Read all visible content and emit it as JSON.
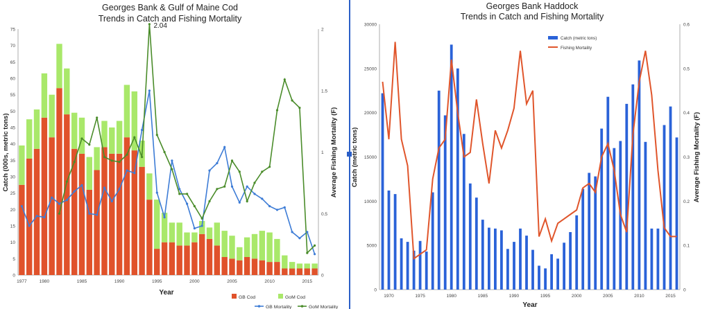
{
  "colors": {
    "gb_cod": "#e0522b",
    "gom_cod": "#a9e86a",
    "gb_mortality": "#3d7cd6",
    "gom_mortality": "#4a8c2a",
    "haddock_catch": "#2a62d8",
    "haddock_mortality": "#e0552b",
    "divider": "#2b5fc7"
  },
  "chart_data": [
    {
      "type": "bar",
      "stacked": true,
      "title": "Georges Bank & Gulf of Maine Cod",
      "subtitle": "Trends in Catch and Fishing Mortality",
      "xlabel": "Year",
      "ylabel": "Catch (000s, metric tons)",
      "y2label": "Average Fishing Mortality (F)",
      "ylim": [
        0,
        75
      ],
      "y2lim": [
        0,
        2
      ],
      "yticks": [
        "0",
        "5",
        "10",
        "15",
        "20",
        "25",
        "30",
        "35",
        "40",
        "45",
        "50",
        "55",
        "60",
        "65",
        "70",
        "75"
      ],
      "y2ticks": [
        "0",
        "0.5",
        "1",
        "1.5",
        "2"
      ],
      "xticks": [
        "1977",
        "1980",
        "1985",
        "1990",
        "1995",
        "2000",
        "2005",
        "2010",
        "2015"
      ],
      "annotation": "2.04",
      "legend": [
        "GB Cod",
        "GoM Cod",
        "GB Mortality",
        "GoM Mortality"
      ],
      "legend_position": "bottom-right",
      "x": [
        1977,
        1978,
        1979,
        1980,
        1981,
        1982,
        1983,
        1984,
        1985,
        1986,
        1987,
        1988,
        1989,
        1990,
        1991,
        1992,
        1993,
        1994,
        1995,
        1996,
        1997,
        1998,
        1999,
        2000,
        2001,
        2002,
        2003,
        2004,
        2005,
        2006,
        2007,
        2008,
        2009,
        2010,
        2011,
        2012,
        2013,
        2014,
        2015,
        2016
      ],
      "series": [
        {
          "name": "GB Cod",
          "kind": "bar",
          "axis": "left",
          "values": [
            27.5,
            35.5,
            38.5,
            48,
            42,
            57,
            49,
            38.5,
            37,
            26,
            32,
            39,
            37,
            37,
            42,
            38,
            33,
            23,
            8,
            10,
            10,
            9,
            9,
            10,
            12.5,
            11,
            9,
            5.5,
            5,
            4.5,
            5.5,
            5,
            4.5,
            4,
            4,
            2,
            2,
            2,
            2,
            2
          ]
        },
        {
          "name": "GoM Cod",
          "kind": "bar",
          "axis": "left",
          "values": [
            12,
            12,
            12,
            13.5,
            13,
            13.5,
            14,
            11,
            11,
            10,
            7,
            8,
            8,
            10,
            16,
            18,
            8,
            8,
            15,
            9,
            6,
            7,
            4,
            3,
            4,
            3.5,
            7,
            8,
            7,
            4,
            6,
            7.5,
            9,
            9,
            7,
            4,
            2,
            1.5,
            1.5,
            1.5
          ]
        },
        {
          "name": "GB Mortality",
          "kind": "line",
          "axis": "right",
          "values": [
            0.56,
            0.4,
            0.48,
            0.47,
            0.63,
            0.58,
            0.61,
            0.68,
            0.73,
            0.5,
            0.49,
            0.71,
            0.6,
            0.7,
            0.85,
            0.83,
            1.18,
            1.5,
            0.67,
            0.47,
            0.93,
            0.7,
            0.58,
            0.38,
            0.4,
            0.85,
            0.91,
            1.04,
            0.72,
            0.59,
            0.72,
            0.66,
            0.62,
            0.56,
            0.53,
            0.55,
            0.35,
            0.3,
            0.35,
            0.17
          ]
        },
        {
          "name": "GoM Mortality",
          "kind": "line",
          "axis": "right",
          "values": [
            null,
            null,
            null,
            null,
            null,
            0.5,
            0.76,
            0.92,
            1.11,
            1.06,
            1.28,
            0.96,
            0.93,
            0.92,
            0.98,
            1.12,
            0.96,
            2.04,
            1.14,
            1.0,
            0.86,
            0.66,
            0.66,
            0.56,
            0.46,
            0.6,
            0.7,
            0.72,
            0.93,
            0.84,
            0.6,
            0.75,
            0.84,
            0.88,
            1.34,
            1.59,
            1.42,
            1.36,
            0.18,
            0.24
          ]
        }
      ]
    },
    {
      "type": "bar",
      "title": "Georges Bank Haddock",
      "subtitle": "Trends in Catch and Fishing Mortality",
      "xlabel": "Year",
      "ylabel": "Catch (metric tons)",
      "y2label": "Average Fishing Mortality (F)",
      "ylim": [
        0,
        30000
      ],
      "y2lim": [
        0,
        0.6
      ],
      "yticks": [
        "0",
        "5000",
        "10000",
        "15000",
        "20000",
        "25000",
        "30000"
      ],
      "y2ticks": [
        "0",
        "0.1",
        "0.2",
        "0.3",
        "0.4",
        "0.5",
        "0.6"
      ],
      "xticks": [
        "1970",
        "1975",
        "1980",
        "1985",
        "1990",
        "1995",
        "2000",
        "2005",
        "2010",
        "2015"
      ],
      "legend": [
        "Catch (metric tons)",
        "Fishing Mortality"
      ],
      "legend_position": "top-center",
      "x": [
        1969,
        1970,
        1971,
        1972,
        1973,
        1974,
        1975,
        1976,
        1977,
        1978,
        1979,
        1980,
        1981,
        1982,
        1983,
        1984,
        1985,
        1986,
        1987,
        1988,
        1989,
        1990,
        1991,
        1992,
        1993,
        1994,
        1995,
        1996,
        1997,
        1998,
        1999,
        2000,
        2001,
        2002,
        2003,
        2004,
        2005,
        2006,
        2007,
        2008,
        2009,
        2010,
        2011,
        2012,
        2013,
        2014,
        2015,
        2016
      ],
      "series": [
        {
          "name": "Catch (metric tons)",
          "kind": "bar",
          "axis": "left",
          "values": [
            22200,
            11200,
            10800,
            5800,
            5400,
            4400,
            5500,
            4300,
            11000,
            22500,
            19700,
            27700,
            25000,
            17600,
            12000,
            10400,
            7900,
            7000,
            6900,
            6700,
            4600,
            5400,
            6900,
            6100,
            4500,
            2700,
            2400,
            4000,
            3500,
            5300,
            6500,
            8400,
            11400,
            13200,
            12800,
            18200,
            21800,
            16000,
            16800,
            21000,
            23200,
            25900,
            16700,
            6900,
            6900,
            18600,
            20700,
            17200
          ]
        },
        {
          "name": "Fishing Mortality",
          "kind": "line",
          "axis": "right",
          "values": [
            0.47,
            0.34,
            0.56,
            0.34,
            0.28,
            0.07,
            0.08,
            0.09,
            0.25,
            0.32,
            0.34,
            0.52,
            0.4,
            0.3,
            0.31,
            0.43,
            0.33,
            0.24,
            0.36,
            0.32,
            0.36,
            0.41,
            0.54,
            0.42,
            0.45,
            0.12,
            0.16,
            0.11,
            0.15,
            0.16,
            0.17,
            0.18,
            0.23,
            0.24,
            0.22,
            0.3,
            0.33,
            0.27,
            0.17,
            0.13,
            0.35,
            0.47,
            0.54,
            0.44,
            0.27,
            0.14,
            0.12,
            0.12
          ]
        }
      ]
    }
  ]
}
